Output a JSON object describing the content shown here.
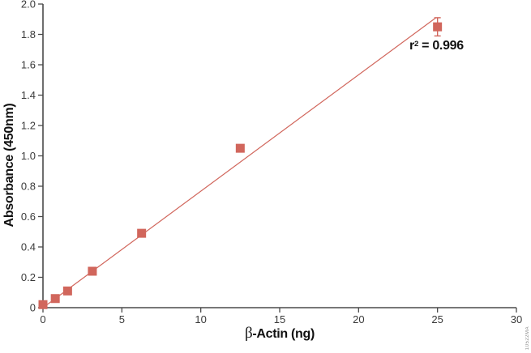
{
  "figure": {
    "background": "#ffffff",
    "watermark": "10522MA"
  },
  "chart_data": {
    "type": "scatter",
    "title": "",
    "xlabel_symbol": "β",
    "xlabel_rest": "-Actin (ng)",
    "ylabel": "Absorbance (450nm)",
    "xlim": [
      0,
      30
    ],
    "ylim": [
      0,
      2.0
    ],
    "grid": false,
    "legend": "none",
    "x_ticks": [
      {
        "value": 0,
        "label": "0"
      },
      {
        "value": 5,
        "label": "5"
      },
      {
        "value": 10,
        "label": "10"
      },
      {
        "value": 15,
        "label": "15"
      },
      {
        "value": 20,
        "label": "20"
      },
      {
        "value": 25,
        "label": "25"
      },
      {
        "value": 30,
        "label": "30"
      }
    ],
    "y_ticks": [
      {
        "value": 0,
        "label": "0"
      },
      {
        "value": 0.2,
        "label": "0.2"
      },
      {
        "value": 0.4,
        "label": "0.4"
      },
      {
        "value": 0.6,
        "label": "0.6"
      },
      {
        "value": 0.8,
        "label": "0.8"
      },
      {
        "value": 1.0,
        "label": "1.0"
      },
      {
        "value": 1.2,
        "label": "1.2"
      },
      {
        "value": 1.4,
        "label": "1.4"
      },
      {
        "value": 1.6,
        "label": "1.6"
      },
      {
        "value": 1.8,
        "label": "1.8"
      },
      {
        "value": 2.0,
        "label": "2.0"
      }
    ],
    "points": [
      {
        "x": 0,
        "y": 0.02
      },
      {
        "x": 0.78,
        "y": 0.06
      },
      {
        "x": 1.56,
        "y": 0.11
      },
      {
        "x": 3.13,
        "y": 0.24
      },
      {
        "x": 6.25,
        "y": 0.49
      },
      {
        "x": 12.5,
        "y": 1.05
      },
      {
        "x": 25,
        "y": 1.85,
        "y_err": 0.06
      }
    ],
    "trendline": {
      "x1": 0,
      "y1": 0.0,
      "x2": 24.9,
      "y2": 1.91
    },
    "annotation": {
      "prefix": "r",
      "sup": "2",
      "rest": " = 0.996"
    },
    "marker_size": 11,
    "colors": {
      "accent": "#d1665c",
      "axis": "#4a4a4a",
      "tick_text": "#3a3a3a",
      "label_text": "#111111",
      "watermark": "#8c8c8c"
    }
  }
}
